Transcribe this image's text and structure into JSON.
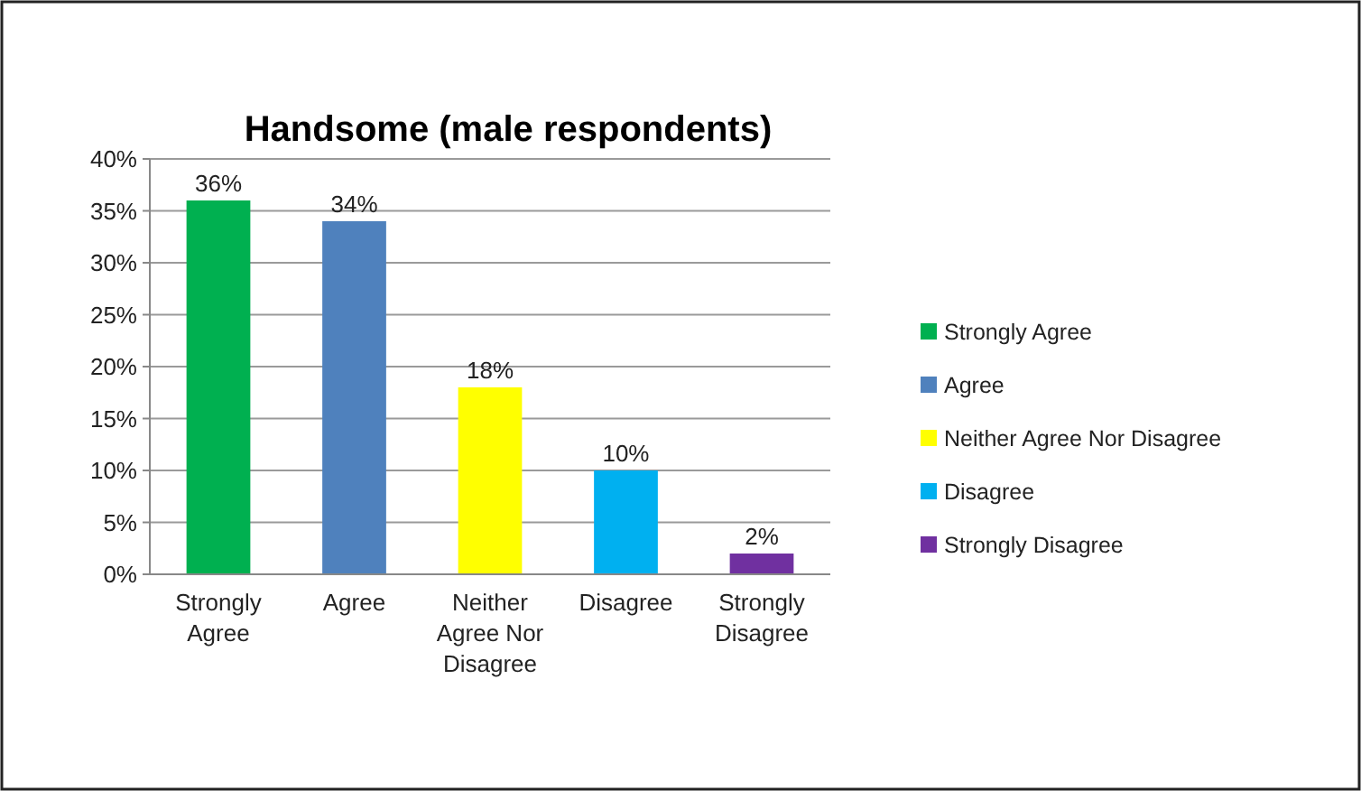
{
  "chart_data": {
    "type": "bar",
    "title": "Handsome (male respondents)",
    "stacked": true,
    "categories": [
      "Strongly Agree",
      "Agree",
      "Neither Agree Nor Disagree",
      "Disagree",
      "Strongly Disagree"
    ],
    "series": [
      {
        "name": "Strongly Agree",
        "color": "#00b050",
        "values": [
          36,
          null,
          null,
          null,
          null
        ],
        "value_labels": [
          "36%",
          null,
          null,
          null,
          null
        ]
      },
      {
        "name": "Agree",
        "color": "#4f81bd",
        "values": [
          null,
          34,
          null,
          null,
          null
        ],
        "value_labels": [
          null,
          "34%",
          null,
          null,
          null
        ]
      },
      {
        "name": "Neither Agree Nor Disagree",
        "color": "#ffff00",
        "values": [
          null,
          null,
          18,
          null,
          null
        ],
        "value_labels": [
          null,
          null,
          "18%",
          null,
          null
        ]
      },
      {
        "name": "Disagree",
        "color": "#00b0f0",
        "values": [
          null,
          null,
          null,
          10,
          null
        ],
        "value_labels": [
          null,
          null,
          null,
          "10%",
          null
        ]
      },
      {
        "name": "Strongly Disagree",
        "color": "#7030a0",
        "values": [
          null,
          null,
          null,
          null,
          2
        ],
        "value_labels": [
          null,
          null,
          null,
          null,
          "2%"
        ]
      }
    ],
    "ylim": [
      0,
      40
    ],
    "yticks": [
      {
        "value": 0,
        "label": "0%"
      },
      {
        "value": 5,
        "label": "5%"
      },
      {
        "value": 10,
        "label": "10%"
      },
      {
        "value": 15,
        "label": "15%"
      },
      {
        "value": 20,
        "label": "20%"
      },
      {
        "value": 25,
        "label": "25%"
      },
      {
        "value": 30,
        "label": "30%"
      },
      {
        "value": 35,
        "label": "35%"
      },
      {
        "value": 40,
        "label": "40%"
      }
    ],
    "grid": "y",
    "legend": "right"
  }
}
